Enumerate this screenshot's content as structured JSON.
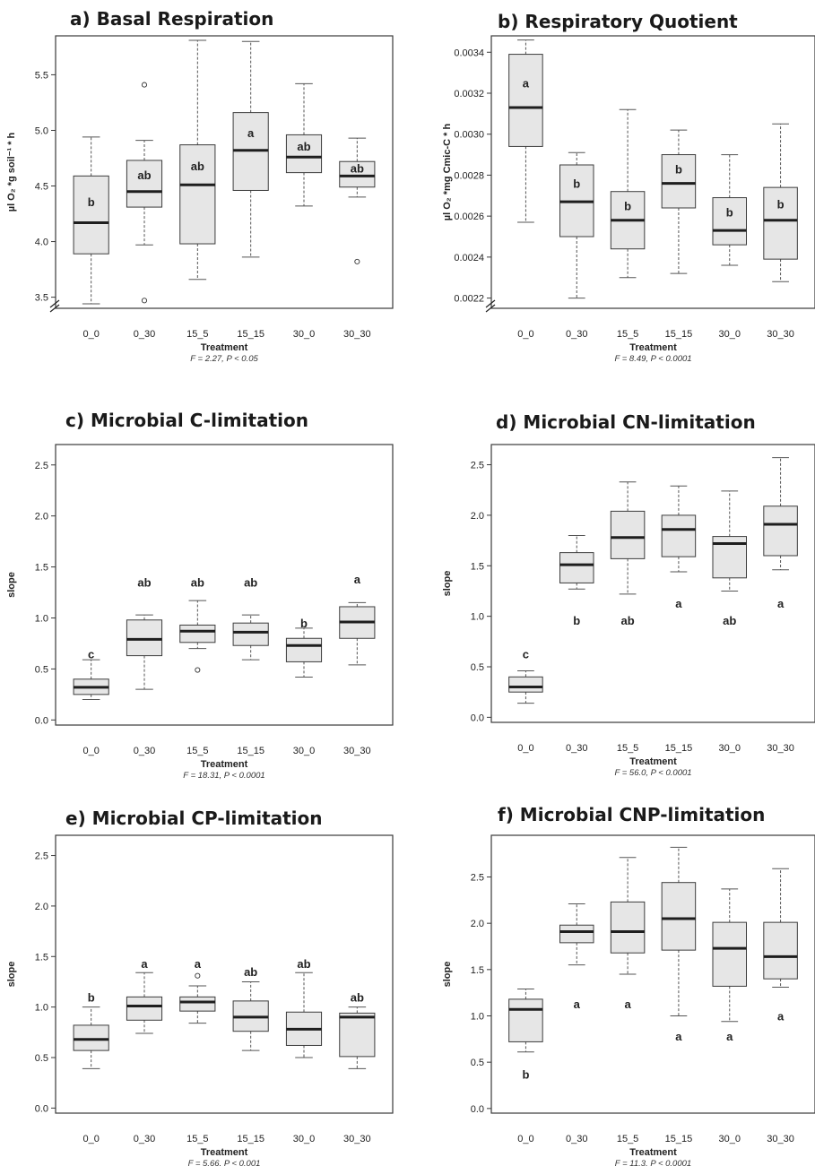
{
  "chart_data": [
    {
      "type": "box",
      "title": "a) Basal Respiration",
      "ylabel": "µl O₂ *g soil⁻¹ * h",
      "xlabel": "Treatment",
      "stat": "F = 2.27, P < 0.05",
      "ylim": [
        3.4,
        5.85
      ],
      "yticks": [
        3.5,
        4.0,
        4.5,
        5.0,
        5.5
      ],
      "tick_decimals": 1,
      "axis_break": true,
      "categories": [
        "0_0",
        "0_30",
        "15_5",
        "15_15",
        "30_0",
        "30_30"
      ],
      "letter_position": "inside",
      "boxes": [
        {
          "min": 3.44,
          "q1": 3.89,
          "median": 4.17,
          "q3": 4.59,
          "max": 4.94,
          "outliers": [],
          "letter": "b",
          "letter_y": 4.36
        },
        {
          "min": 3.97,
          "q1": 4.31,
          "median": 4.45,
          "q3": 4.73,
          "max": 4.91,
          "outliers": [
            5.41,
            3.47
          ],
          "letter": "ab",
          "letter_y": 4.6
        },
        {
          "min": 3.66,
          "q1": 3.98,
          "median": 4.51,
          "q3": 4.87,
          "max": 5.81,
          "outliers": [],
          "letter": "ab",
          "letter_y": 4.68
        },
        {
          "min": 3.86,
          "q1": 4.46,
          "median": 4.82,
          "q3": 5.16,
          "max": 5.8,
          "outliers": [],
          "letter": "a",
          "letter_y": 4.98
        },
        {
          "min": 4.32,
          "q1": 4.62,
          "median": 4.76,
          "q3": 4.96,
          "max": 5.42,
          "outliers": [],
          "letter": "ab",
          "letter_y": 4.86
        },
        {
          "min": 4.4,
          "q1": 4.49,
          "median": 4.59,
          "q3": 4.72,
          "max": 4.93,
          "outliers": [
            3.82
          ],
          "letter": "ab",
          "letter_y": 4.66
        }
      ]
    },
    {
      "type": "box",
      "title": "b) Respiratory Quotient",
      "ylabel": "µl O₂ *mg Cmic-C * h",
      "xlabel": "Treatment",
      "stat": "F = 8.49, P < 0.0001",
      "ylim": [
        0.00215,
        0.00348
      ],
      "yticks": [
        0.0022,
        0.0024,
        0.0026,
        0.0028,
        0.003,
        0.0032,
        0.0034
      ],
      "tick_decimals": 4,
      "axis_break": true,
      "categories": [
        "0_0",
        "0_30",
        "15_5",
        "15_15",
        "30_0",
        "30_30"
      ],
      "letter_position": "inside",
      "boxes": [
        {
          "min": 0.00257,
          "q1": 0.00294,
          "median": 0.00313,
          "q3": 0.00339,
          "max": 0.00346,
          "outliers": [],
          "letter": "a",
          "letter_y": 0.00325
        },
        {
          "min": 0.0022,
          "q1": 0.0025,
          "median": 0.00267,
          "q3": 0.00285,
          "max": 0.00291,
          "outliers": [],
          "letter": "b",
          "letter_y": 0.00276
        },
        {
          "min": 0.0023,
          "q1": 0.00244,
          "median": 0.00258,
          "q3": 0.00272,
          "max": 0.00312,
          "outliers": [],
          "letter": "b",
          "letter_y": 0.00265
        },
        {
          "min": 0.00232,
          "q1": 0.00264,
          "median": 0.00276,
          "q3": 0.0029,
          "max": 0.00302,
          "outliers": [],
          "letter": "b",
          "letter_y": 0.00283
        },
        {
          "min": 0.00236,
          "q1": 0.00246,
          "median": 0.00253,
          "q3": 0.00269,
          "max": 0.0029,
          "outliers": [],
          "letter": "b",
          "letter_y": 0.00262
        },
        {
          "min": 0.00228,
          "q1": 0.00239,
          "median": 0.00258,
          "q3": 0.00274,
          "max": 0.00305,
          "outliers": [],
          "letter": "b",
          "letter_y": 0.00266
        }
      ]
    },
    {
      "type": "box",
      "title": "c) Microbial C-limitation",
      "ylabel": "slope",
      "xlabel": "Treatment",
      "stat": "F = 18.31, P < 0.0001",
      "ylim": [
        -0.05,
        2.7
      ],
      "yticks": [
        0.0,
        0.5,
        1.0,
        1.5,
        2.0,
        2.5
      ],
      "tick_decimals": 1,
      "axis_break": false,
      "categories": [
        "0_0",
        "0_30",
        "15_5",
        "15_15",
        "30_0",
        "30_30"
      ],
      "letter_position": "above",
      "boxes": [
        {
          "min": 0.2,
          "q1": 0.25,
          "median": 0.32,
          "q3": 0.4,
          "max": 0.59,
          "outliers": [],
          "letter": "c",
          "letter_y": 0.65
        },
        {
          "min": 0.3,
          "q1": 0.63,
          "median": 0.79,
          "q3": 0.98,
          "max": 1.03,
          "outliers": [],
          "letter": "ab",
          "letter_y": 1.35
        },
        {
          "min": 0.7,
          "q1": 0.76,
          "median": 0.87,
          "q3": 0.93,
          "max": 1.17,
          "outliers": [
            0.49
          ],
          "letter": "ab",
          "letter_y": 1.35
        },
        {
          "min": 0.59,
          "q1": 0.73,
          "median": 0.86,
          "q3": 0.95,
          "max": 1.03,
          "outliers": [],
          "letter": "ab",
          "letter_y": 1.35
        },
        {
          "min": 0.42,
          "q1": 0.57,
          "median": 0.73,
          "q3": 0.8,
          "max": 0.9,
          "outliers": [],
          "letter": "b",
          "letter_y": 0.95
        },
        {
          "min": 0.54,
          "q1": 0.8,
          "median": 0.96,
          "q3": 1.11,
          "max": 1.15,
          "outliers": [],
          "letter": "a",
          "letter_y": 1.38
        }
      ]
    },
    {
      "type": "box",
      "title": "d) Microbial CN-limitation",
      "ylabel": "slope",
      "xlabel": "Treatment",
      "stat": "F = 56.0, P < 0.0001",
      "ylim": [
        -0.05,
        2.7
      ],
      "yticks": [
        0.0,
        0.5,
        1.0,
        1.5,
        2.0,
        2.5
      ],
      "tick_decimals": 1,
      "axis_break": false,
      "categories": [
        "0_0",
        "0_30",
        "15_5",
        "15_15",
        "30_0",
        "30_30"
      ],
      "letter_position": "below",
      "boxes": [
        {
          "min": 0.14,
          "q1": 0.25,
          "median": 0.3,
          "q3": 0.4,
          "max": 0.46,
          "outliers": [],
          "letter": "c",
          "letter_y": 0.63
        },
        {
          "min": 1.27,
          "q1": 1.33,
          "median": 1.51,
          "q3": 1.63,
          "max": 1.8,
          "outliers": [],
          "letter": "b",
          "letter_y": 0.96
        },
        {
          "min": 1.22,
          "q1": 1.57,
          "median": 1.78,
          "q3": 2.04,
          "max": 2.33,
          "outliers": [],
          "letter": "ab",
          "letter_y": 0.96
        },
        {
          "min": 1.44,
          "q1": 1.59,
          "median": 1.86,
          "q3": 2.0,
          "max": 2.29,
          "outliers": [],
          "letter": "a",
          "letter_y": 1.13
        },
        {
          "min": 1.25,
          "q1": 1.38,
          "median": 1.72,
          "q3": 1.79,
          "max": 2.24,
          "outliers": [],
          "letter": "ab",
          "letter_y": 0.96
        },
        {
          "min": 1.46,
          "q1": 1.6,
          "median": 1.91,
          "q3": 2.09,
          "max": 2.57,
          "outliers": [],
          "letter": "a",
          "letter_y": 1.13
        }
      ]
    },
    {
      "type": "box",
      "title": "e) Microbial CP-limitation",
      "ylabel": "slope",
      "xlabel": "Treatment",
      "stat": "F = 5.66, P < 0.001",
      "ylim": [
        -0.05,
        2.7
      ],
      "yticks": [
        0.0,
        0.5,
        1.0,
        1.5,
        2.0,
        2.5
      ],
      "tick_decimals": 1,
      "axis_break": false,
      "categories": [
        "0_0",
        "0_30",
        "15_5",
        "15_15",
        "30_0",
        "30_30"
      ],
      "letter_position": "above",
      "boxes": [
        {
          "min": 0.39,
          "q1": 0.57,
          "median": 0.68,
          "q3": 0.82,
          "max": 1.0,
          "outliers": [],
          "letter": "b",
          "letter_y": 1.1
        },
        {
          "min": 0.74,
          "q1": 0.87,
          "median": 1.01,
          "q3": 1.1,
          "max": 1.34,
          "outliers": [],
          "letter": "a",
          "letter_y": 1.43
        },
        {
          "min": 0.84,
          "q1": 0.96,
          "median": 1.05,
          "q3": 1.1,
          "max": 1.21,
          "outliers": [
            1.31
          ],
          "letter": "a",
          "letter_y": 1.43
        },
        {
          "min": 0.57,
          "q1": 0.76,
          "median": 0.9,
          "q3": 1.06,
          "max": 1.25,
          "outliers": [],
          "letter": "ab",
          "letter_y": 1.35
        },
        {
          "min": 0.5,
          "q1": 0.62,
          "median": 0.78,
          "q3": 0.95,
          "max": 1.34,
          "outliers": [],
          "letter": "ab",
          "letter_y": 1.43
        },
        {
          "min": 0.39,
          "q1": 0.51,
          "median": 0.9,
          "q3": 0.94,
          "max": 1.0,
          "outliers": [],
          "letter": "ab",
          "letter_y": 1.1
        }
      ]
    },
    {
      "type": "box",
      "title": "f) Microbial CNP-limitation",
      "ylabel": "slope",
      "xlabel": "Treatment",
      "stat": "F = 11.3, P < 0.0001",
      "ylim": [
        -0.05,
        2.95
      ],
      "yticks": [
        0.0,
        0.5,
        1.0,
        1.5,
        2.0,
        2.5
      ],
      "tick_decimals": 1,
      "axis_break": false,
      "categories": [
        "0_0",
        "0_30",
        "15_5",
        "15_15",
        "30_0",
        "30_30"
      ],
      "letter_position": "below",
      "boxes": [
        {
          "min": 0.61,
          "q1": 0.72,
          "median": 1.07,
          "q3": 1.18,
          "max": 1.29,
          "outliers": [],
          "letter": "b",
          "letter_y": 0.37
        },
        {
          "min": 1.55,
          "q1": 1.79,
          "median": 1.91,
          "q3": 1.98,
          "max": 2.21,
          "outliers": [],
          "letter": "a",
          "letter_y": 1.13
        },
        {
          "min": 1.45,
          "q1": 1.68,
          "median": 1.91,
          "q3": 2.23,
          "max": 2.71,
          "outliers": [],
          "letter": "a",
          "letter_y": 1.13
        },
        {
          "min": 1.0,
          "q1": 1.71,
          "median": 2.05,
          "q3": 2.44,
          "max": 2.82,
          "outliers": [],
          "letter": "a",
          "letter_y": 0.78
        },
        {
          "min": 0.94,
          "q1": 1.32,
          "median": 1.73,
          "q3": 2.01,
          "max": 2.37,
          "outliers": [],
          "letter": "a",
          "letter_y": 0.78
        },
        {
          "min": 1.31,
          "q1": 1.4,
          "median": 1.64,
          "q3": 2.01,
          "max": 2.59,
          "outliers": [],
          "letter": "a",
          "letter_y": 1.0
        }
      ]
    }
  ],
  "colors": {
    "box_fill": "#e6e6e6",
    "box_stroke": "#3c3c3c",
    "median": "#1e1e1e",
    "whisker": "#555555",
    "frame": "#3a3a3a"
  }
}
